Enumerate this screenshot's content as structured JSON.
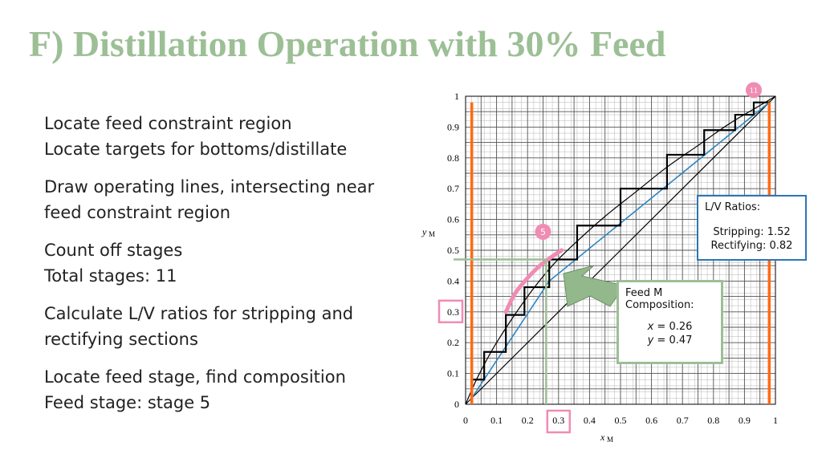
{
  "title": "F) Distillation Operation with 30% Feed",
  "bullets": [
    {
      "lines": [
        "Locate feed constraint region",
        "Locate targets for bottoms/distillate"
      ]
    },
    {
      "lines": [
        "Draw operating lines, intersecting near",
        "feed constraint region"
      ]
    },
    {
      "lines": [
        "Count off stages",
        "Total stages: 11"
      ]
    },
    {
      "lines": [
        "Calculate L/V ratios for stripping and",
        "rectifying sections"
      ]
    },
    {
      "lines": [
        "Locate feed stage, find composition",
        "Feed stage: stage 5"
      ]
    }
  ],
  "lv_box": {
    "heading": "L/V Ratios:",
    "stripping": "Stripping: 1.52",
    "rectifying": "Rectifying: 0.82"
  },
  "feed_box": {
    "heading_1": "Feed M",
    "heading_2": "Composition:",
    "x_var": "x",
    "x_val": " = 0.26",
    "y_var": "y",
    "y_val": " = 0.47"
  },
  "chart_data": {
    "type": "line",
    "xlabel": "x",
    "xlabel_sub": "M",
    "ylabel": "y",
    "ylabel_sub": "M",
    "xlim": [
      0,
      1
    ],
    "ylim": [
      0,
      1
    ],
    "grid": true,
    "x_ticks": [
      "0",
      "0.1",
      "0.2",
      "0.3",
      "0.4",
      "0.5",
      "0.6",
      "0.7",
      "0.8",
      "0.9",
      "1"
    ],
    "y_ticks": [
      "0",
      "0.1",
      "0.2",
      "0.3",
      "0.4",
      "0.5",
      "0.6",
      "0.7",
      "0.8",
      "0.9",
      "1"
    ],
    "highlighted_x_tick": "0.3",
    "highlighted_y_tick": "0.3",
    "equilibrium_curve": {
      "x": [
        0,
        0.04,
        0.1,
        0.2,
        0.28,
        0.35,
        0.45,
        0.55,
        0.65,
        0.75,
        0.85,
        0.95,
        1.0
      ],
      "y": [
        0,
        0.09,
        0.2,
        0.35,
        0.45,
        0.52,
        0.61,
        0.69,
        0.77,
        0.84,
        0.91,
        0.97,
        1.0
      ]
    },
    "diagonal": {
      "x": [
        0,
        1
      ],
      "y": [
        0,
        1
      ]
    },
    "stripping_line": {
      "x": [
        0.02,
        0.27
      ],
      "y": [
        0.02,
        0.4
      ]
    },
    "rectifying_line": {
      "x": [
        0.27,
        0.98
      ],
      "y": [
        0.4,
        0.98
      ]
    },
    "stages": {
      "x": [
        0.02,
        0.02,
        0.06,
        0.06,
        0.13,
        0.13,
        0.19,
        0.19,
        0.27,
        0.27,
        0.36,
        0.36,
        0.5,
        0.5,
        0.65,
        0.65,
        0.77,
        0.77,
        0.87,
        0.87,
        0.93,
        0.93,
        0.98
      ],
      "y": [
        0.02,
        0.08,
        0.08,
        0.17,
        0.17,
        0.29,
        0.29,
        0.38,
        0.38,
        0.47,
        0.47,
        0.58,
        0.58,
        0.7,
        0.7,
        0.81,
        0.81,
        0.89,
        0.89,
        0.94,
        0.94,
        0.98,
        0.98
      ]
    },
    "feed_constraint_curve": {
      "x": [
        0.13,
        0.16,
        0.2,
        0.24,
        0.28,
        0.31
      ],
      "y": [
        0.3,
        0.36,
        0.41,
        0.45,
        0.48,
        0.5
      ]
    },
    "feed_x": 0.26,
    "feed_y": 0.47,
    "targets_x": [
      0.02,
      0.98
    ],
    "stage_labels": [
      {
        "text": "5",
        "x": 0.25,
        "y": 0.56
      },
      {
        "text": "11",
        "x": 0.93,
        "y": 1.02
      }
    ],
    "colors": {
      "equilibrium": "#000000",
      "operating": "#2e86c1",
      "stages": "#000000",
      "feed_constraint": "#f08cb4",
      "targets": "#ff6a13",
      "feed_lines": "#9cbf95",
      "circle_fill": "#f08cb4"
    }
  }
}
